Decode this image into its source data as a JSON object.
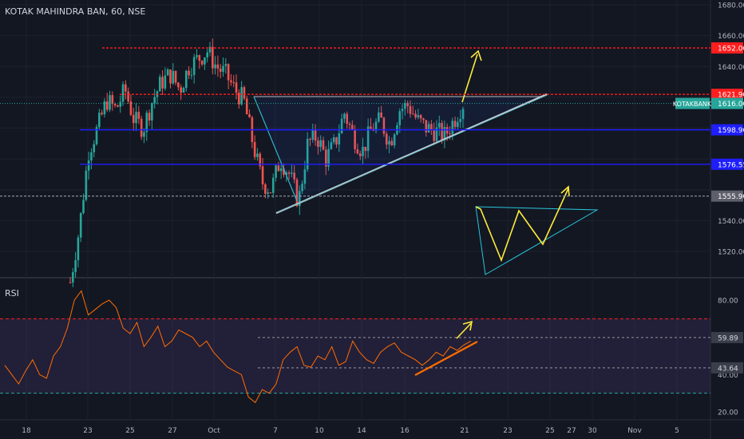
{
  "chart_data": [
    {
      "type": "candlestick",
      "title": "KOTAK MAHINDRA BAN, 60, NSE",
      "symbol_tag": "KOTAKBANK",
      "last_price": 1616.0,
      "price_axis_ticks": [
        1520.0,
        1540.0,
        1560.0,
        1580.0,
        1600.0,
        1620.0,
        1640.0,
        1660.0,
        1680.0
      ],
      "ylim": [
        1505,
        1685
      ],
      "x_tick_labels": [
        "18",
        "23",
        "25",
        "27",
        "Oct",
        "7",
        "10",
        "14",
        "16",
        "21",
        "23",
        "25",
        "27",
        "30",
        "Nov",
        "5"
      ],
      "levels": [
        {
          "name": "resistance-top",
          "value": 1652.0,
          "color": "#ff1e1e",
          "style": "dashed"
        },
        {
          "name": "resistance",
          "value": 1621.9,
          "color": "#ff1e1e",
          "style": "dashed"
        },
        {
          "name": "support-1",
          "value": 1598.9,
          "color": "#1e1eff",
          "style": "solid"
        },
        {
          "name": "support-2",
          "value": 1576.55,
          "color": "#1e1eff",
          "style": "solid"
        },
        {
          "name": "support-3",
          "value": 1555.9,
          "color": "#9598a1",
          "style": "dashed"
        }
      ],
      "trend_close": [
        1500,
        1535,
        1585,
        1600,
        1618,
        1612,
        1625,
        1605,
        1600,
        1618,
        1630,
        1635,
        1625,
        1640,
        1645,
        1650,
        1640,
        1635,
        1625,
        1618,
        1590,
        1565,
        1560,
        1580,
        1570,
        1552,
        1590,
        1595,
        1580,
        1590,
        1610,
        1595,
        1585,
        1600,
        1605,
        1590,
        1612,
        1615,
        1605,
        1600,
        1598,
        1595,
        1605,
        1616
      ],
      "label_color_red": "#ff1e1e",
      "label_color_blue": "#1e1eff",
      "up_color": "#26a69a",
      "down_color": "#ef5350"
    },
    {
      "type": "line",
      "title": "RSI",
      "yaxis_ticks": [
        20.0,
        40.0,
        80.0
      ],
      "ylim": [
        15,
        90
      ],
      "band": [
        30,
        70
      ],
      "value_labels": [
        59.89,
        43.64
      ],
      "rsi_values": [
        45,
        40,
        35,
        42,
        48,
        40,
        38,
        50,
        55,
        65,
        80,
        85,
        72,
        75,
        78,
        80,
        76,
        65,
        62,
        68,
        55,
        60,
        66,
        55,
        58,
        64,
        62,
        60,
        55,
        58,
        52,
        48,
        44,
        42,
        40,
        28,
        25,
        32,
        30,
        35,
        48,
        52,
        55,
        45,
        44,
        50,
        48,
        55,
        45,
        47,
        58,
        52,
        48,
        46,
        52,
        55,
        57,
        52,
        50,
        48,
        45,
        48,
        52,
        50,
        55,
        53,
        56,
        58
      ],
      "line_color": "#ff6d00"
    }
  ]
}
